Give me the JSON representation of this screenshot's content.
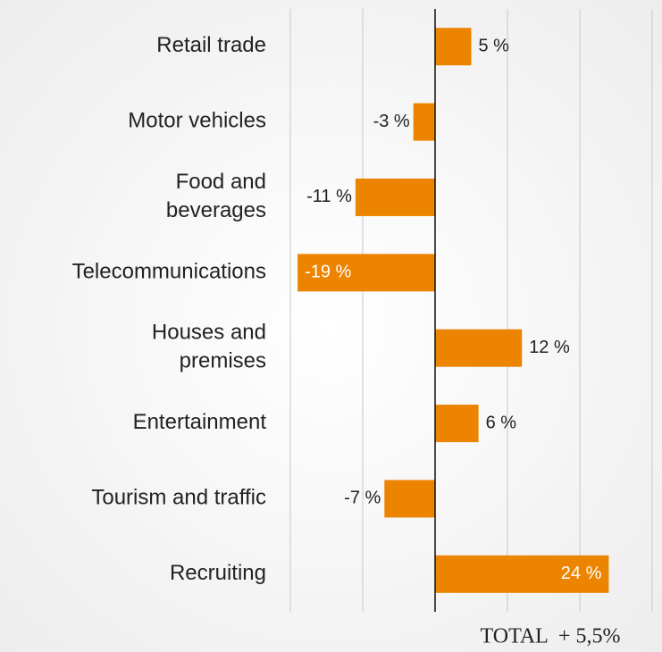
{
  "chart_data": {
    "type": "barh",
    "categories": [
      "Retail trade",
      "Motor vehicles",
      "Food and\nbeverages",
      "Telecommunications",
      "Houses and\npremises",
      "Entertainment",
      "Tourism and traffic",
      "Recruiting"
    ],
    "values": [
      5,
      -3,
      -11,
      -19,
      12,
      6,
      -7,
      24
    ],
    "value_labels": [
      "5 %",
      "-3 %",
      "-11 %",
      "-19 %",
      "12 %",
      "6 %",
      "-7 %",
      "24 %"
    ],
    "color": "#ec8400",
    "xlim": [
      -20,
      30
    ],
    "xticks": [
      -20,
      -10,
      0,
      10,
      20,
      30
    ],
    "grid": true,
    "annotation": "TOTAL  + 5,5%"
  }
}
